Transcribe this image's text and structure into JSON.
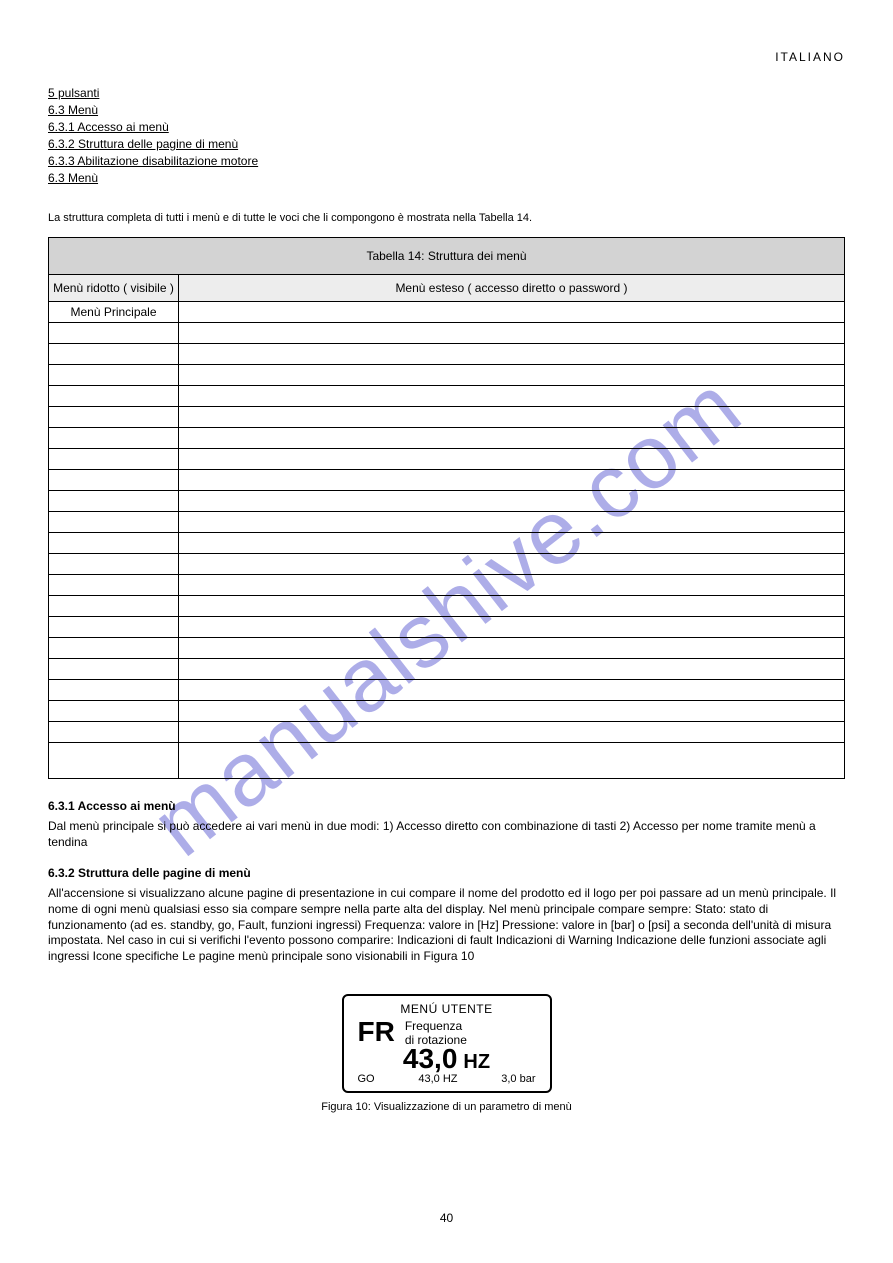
{
  "header": "ITALIANO",
  "links": [
    "5 pulsanti",
    "6.3 Menù",
    "6.3.1 Accesso ai menù",
    "6.3.2 Struttura delle pagine di menù",
    "6.3.3 Abilitazione disabilitazione motore ",
    "6.3 Menù"
  ],
  "note": "La struttura completa di tutti i menù e di tutte le voci che li compongono è mostrata nella Tabella 14.",
  "table": {
    "title": "Tabella 14: Struttura dei menù",
    "col1": "Menù ridotto ( visibile )",
    "col2": "Menù esteso ( accesso diretto o password )",
    "rows": [
      [
        "Menù Principale",
        ""
      ],
      [
        "  ",
        ""
      ],
      [
        "  ",
        ""
      ],
      [
        "  ",
        ""
      ],
      [
        "  ",
        ""
      ],
      [
        "  ",
        ""
      ],
      [
        "  ",
        ""
      ],
      [
        "  ",
        ""
      ],
      [
        "  ",
        ""
      ],
      [
        "  ",
        ""
      ],
      [
        "  ",
        ""
      ],
      [
        "  ",
        ""
      ],
      [
        "  ",
        ""
      ],
      [
        "  ",
        ""
      ],
      [
        "  ",
        ""
      ],
      [
        "  ",
        ""
      ],
      [
        "  ",
        ""
      ],
      [
        "  ",
        ""
      ],
      [
        "  ",
        ""
      ],
      [
        "  ",
        ""
      ],
      [
        "  ",
        ""
      ],
      [
        "  ",
        ""
      ]
    ]
  },
  "sections": [
    {
      "title": "6.3.1 Accesso ai menù",
      "body": "Dal menù principale si può accedere ai vari menù in due modi:\n1) Accesso diretto con combinazione di tasti\n2) Accesso per nome tramite menù a tendina"
    },
    {
      "title": "6.3.2 Struttura delle pagine di menù",
      "body": "All'accensione si visualizzano alcune pagine di presentazione in cui compare il nome del prodotto ed il logo per poi passare ad un menù principale. Il nome di ogni menù qualsiasi esso sia compare sempre nella parte alta del display.\nNel menù principale compare sempre:\nStato: stato di funzionamento (ad es. standby, go, Fault, funzioni ingressi)\nFrequenza: valore in [Hz]\nPressione: valore in [bar] o [psi] a seconda dell'unità di misura impostata.\n\nNel caso in cui si verifichi l'evento possono comparire:\nIndicazioni di fault\nIndicazioni di Warning\nIndicazione delle funzioni associate agli ingressi\nIcone specifiche\nLe pagine menù principale sono visionabili in Figura 10"
    }
  ],
  "lcd": {
    "menu": "MENÚ UTENTE",
    "fr": "FR",
    "desc1": "Frequenza",
    "desc2": "di rotazione",
    "value": "43,0",
    "hz": "HZ",
    "go": "GO",
    "b_hz": "43,0 HZ",
    "b_bar": "3,0  bar"
  },
  "fig_caption": "Figura 10: Visualizzazione di un parametro di menù",
  "page_number": "40"
}
